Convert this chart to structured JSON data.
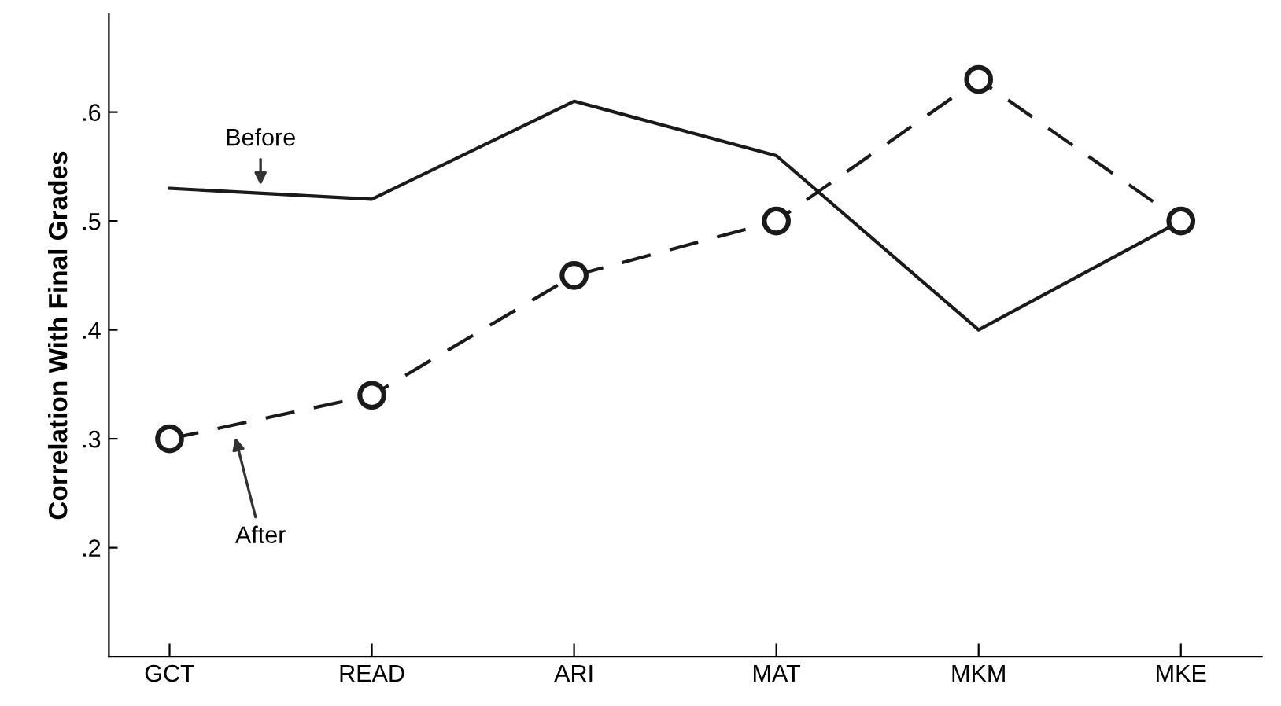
{
  "chart_data": {
    "type": "line",
    "ylabel": "Correlation With Final Grades",
    "categories": [
      "GCT",
      "READ",
      "ARI",
      "MAT",
      "MKM",
      "MKE"
    ],
    "series": [
      {
        "name": "Before",
        "color": "#1a1a1a",
        "values": [
          0.53,
          0.52,
          0.61,
          0.56,
          0.4,
          0.5
        ],
        "marker": "none",
        "line_style": "solid"
      },
      {
        "name": "After",
        "color": "#1a1a1a",
        "values": [
          0.3,
          0.34,
          0.45,
          0.5,
          0.63,
          0.5
        ],
        "marker": "circle",
        "line_style": "dashed"
      }
    ],
    "ylim": [
      0.1,
      0.69
    ],
    "yticks": [
      {
        "value": 0.2,
        "label": ".2"
      },
      {
        "value": 0.3,
        "label": ".3"
      },
      {
        "value": 0.4,
        "label": ".4"
      },
      {
        "value": 0.5,
        "label": ".5"
      },
      {
        "value": 0.6,
        "label": ".6"
      }
    ],
    "grid": false,
    "legend": false
  }
}
